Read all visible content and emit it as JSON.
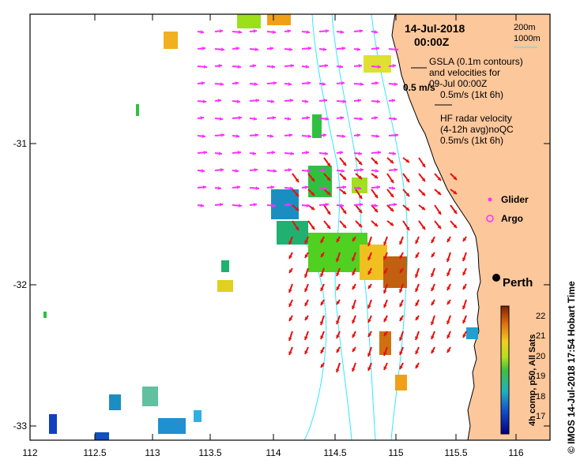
{
  "header": {
    "date": "14-Jul-2018",
    "time": "00:00Z",
    "contour_legend_1": "200m",
    "contour_legend_2": "1000m"
  },
  "legend": {
    "gsla_text_1": "GSLA (0.1m contours)",
    "gsla_text_2": "and velocities for",
    "gsla_text_3": "09-Jul 00:00Z",
    "gsla_scale": "0.5m/s (1kt 6h)",
    "scale_label": "0.5 m/s",
    "hf_text_1": "HF radar velocity",
    "hf_text_2": "(4-12h avg)noQC",
    "hf_scale": "0.5m/s (1kt 6h)",
    "glider": "Glider",
    "argo": "Argo"
  },
  "place": {
    "city": "Perth"
  },
  "axes": {
    "x_ticks": [
      "112",
      "112.5",
      "113",
      "113.5",
      "114",
      "114.5",
      "115",
      "115.5",
      "116"
    ],
    "y_ticks": [
      "-31",
      "-32",
      "-33"
    ]
  },
  "colorbar": {
    "title": "4h comp, p50, All Sats",
    "ticks": [
      "22",
      "21",
      "20",
      "19",
      "18",
      "17"
    ],
    "min": 16.5,
    "max": 22.5
  },
  "side_label": "© IMOS 14-Jul-2018 17:54 Hobart Time",
  "colors": {
    "land": "#fcc79b",
    "contour": "#30e8ff",
    "hf_arrow": "#e81010",
    "gsla_arrow": "#ff30ff"
  }
}
